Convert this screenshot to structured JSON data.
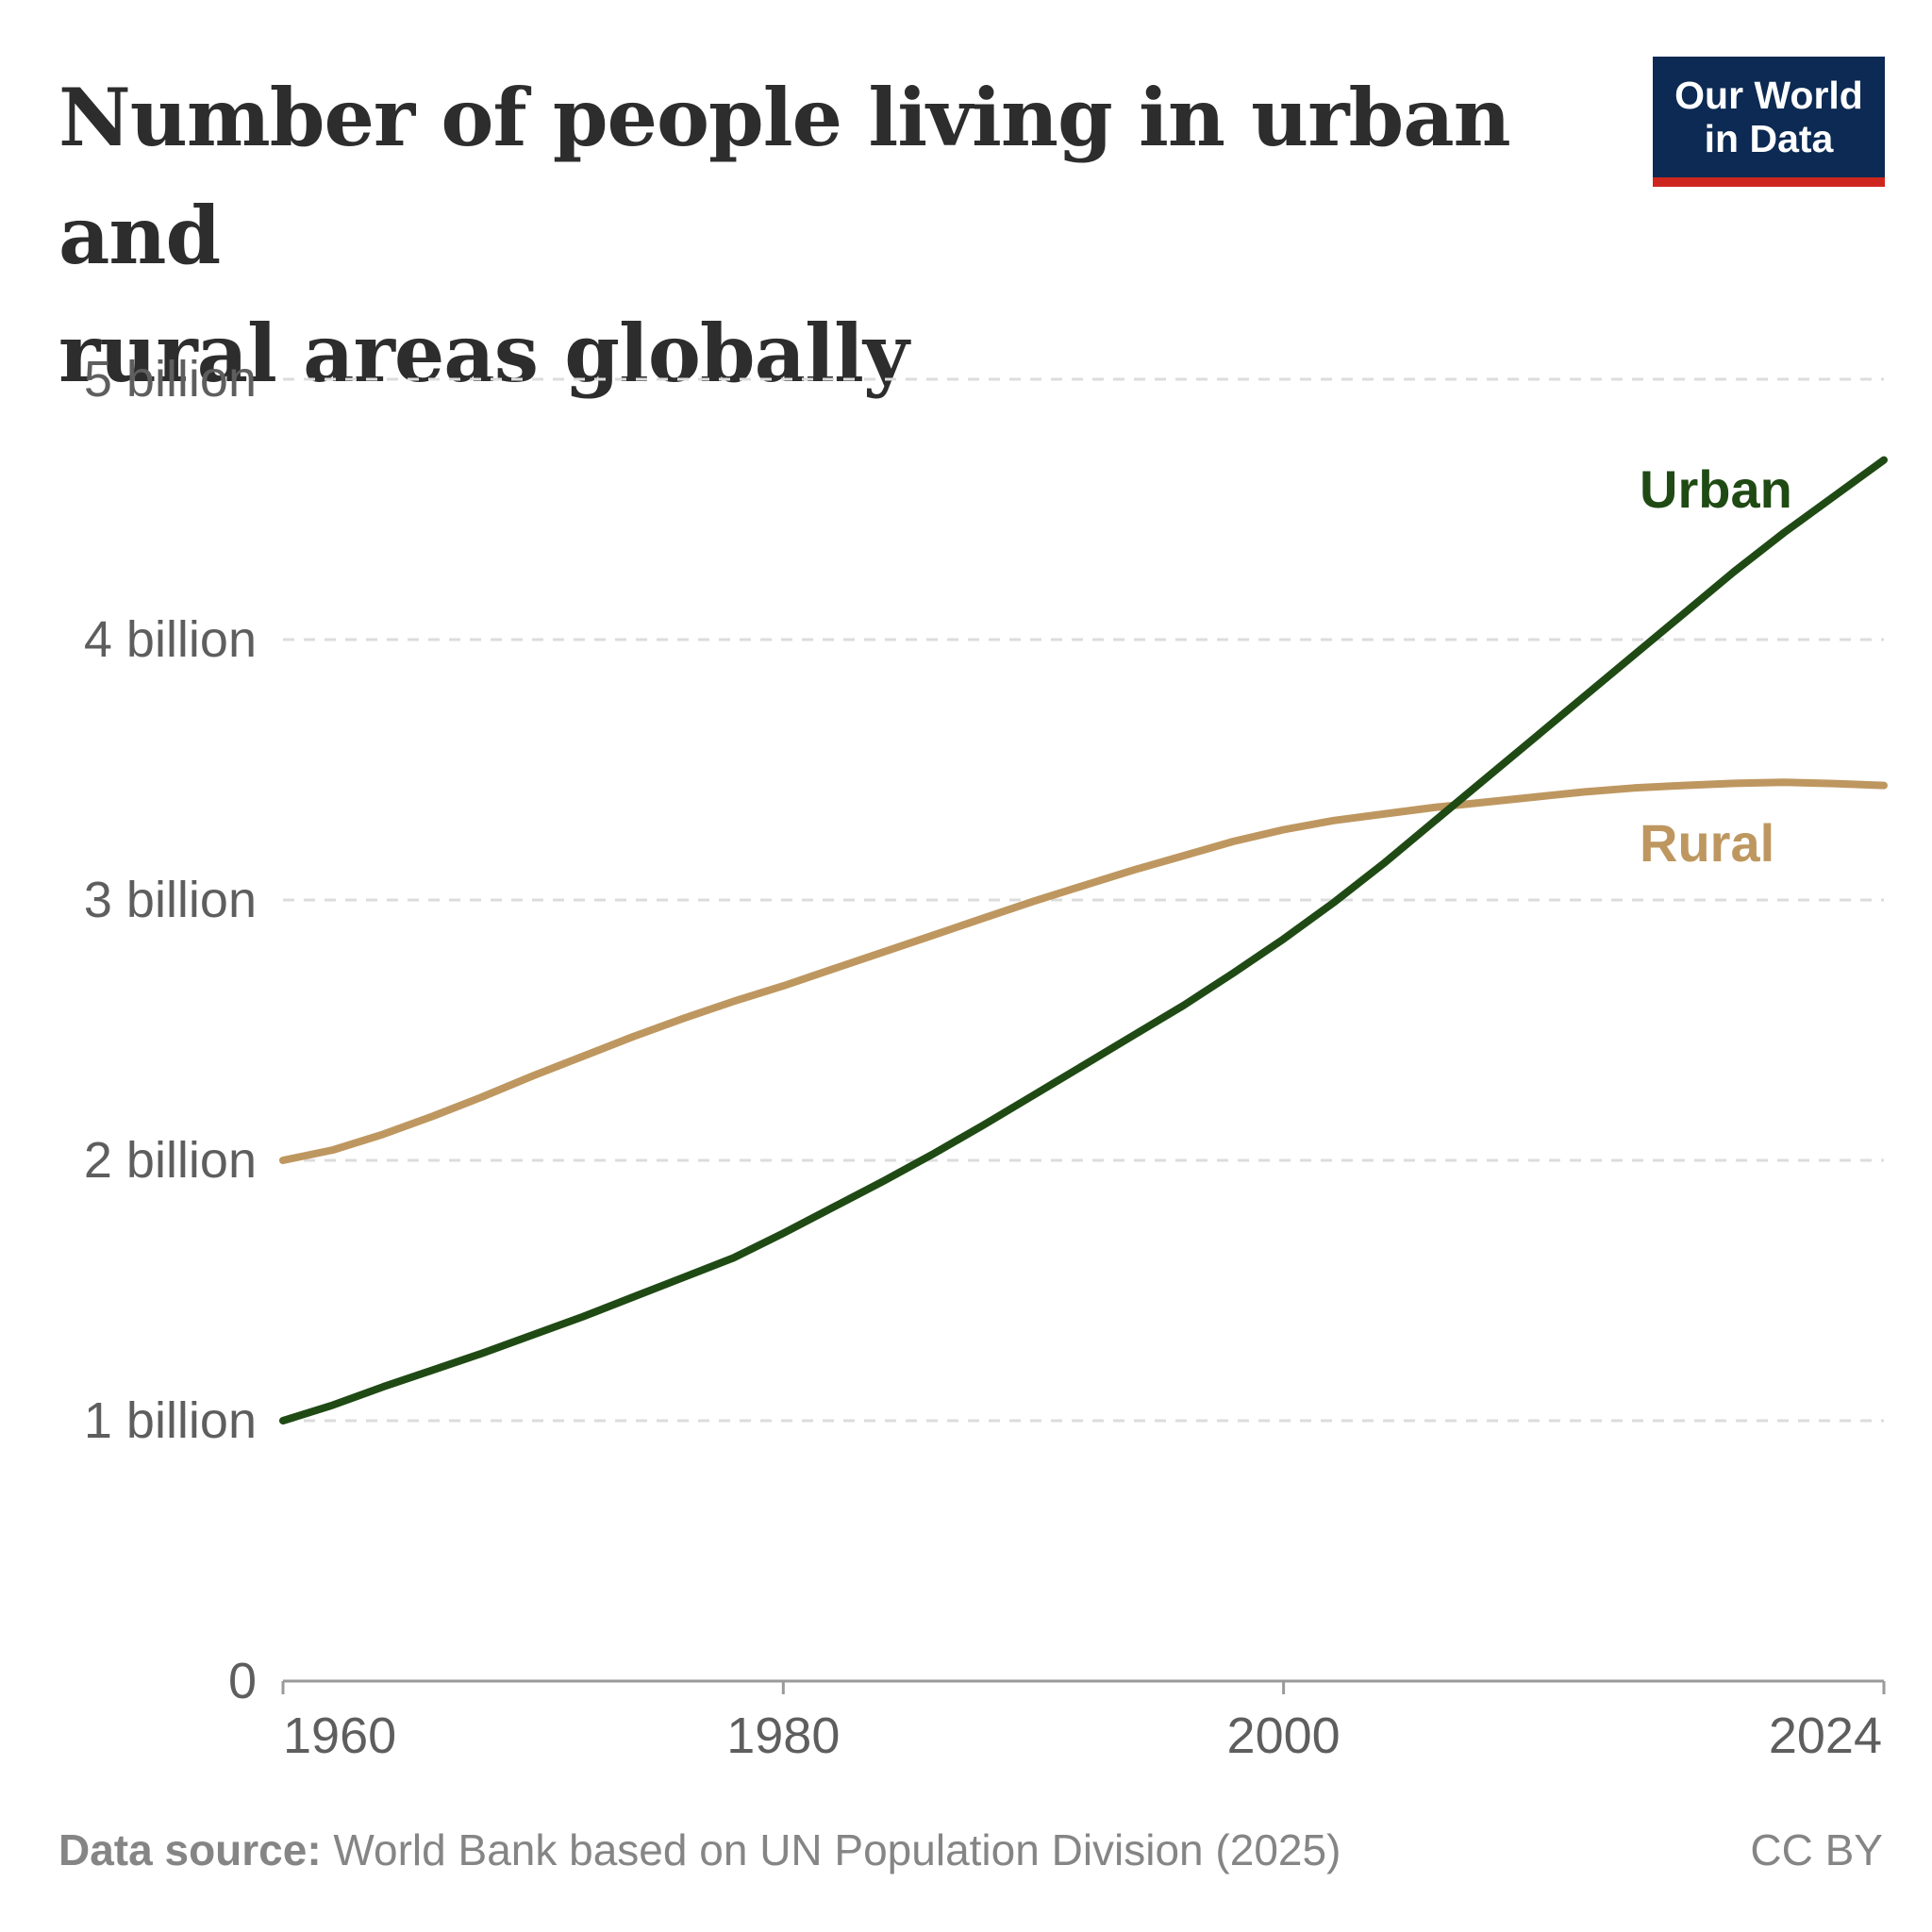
{
  "header": {
    "title_line1": "Number of people living in urban and",
    "title_line2": "rural areas globally",
    "logo_line1": "Our World",
    "logo_line2": "in Data"
  },
  "footer": {
    "source_label": "Data source:",
    "source_text": " World Bank based on UN Population Division (2025)",
    "license": "CC BY"
  },
  "colors": {
    "urban": "#1f4a14",
    "rural": "#be9760",
    "grid": "#dcdcdc",
    "axis": "#9a9a9a",
    "tick_label": "#5e5e5e"
  },
  "chart_data": {
    "type": "line",
    "title": "Number of people living in urban and rural areas globally",
    "xlabel": "",
    "ylabel": "",
    "xlim": [
      1960,
      2024
    ],
    "ylim": [
      0,
      5000000000
    ],
    "x_ticks": [
      1960,
      1980,
      2000,
      2024
    ],
    "x_tick_labels": [
      "1960",
      "1980",
      "2000",
      "2024"
    ],
    "y_ticks": [
      0,
      1000000000,
      2000000000,
      3000000000,
      4000000000,
      5000000000
    ],
    "y_tick_labels": [
      "0",
      "1 billion",
      "2 billion",
      "3 billion",
      "4 billion",
      "5 billion"
    ],
    "grid": true,
    "legend": "inline labels at right end of lines",
    "series": [
      {
        "name": "Urban",
        "label": "Urban",
        "color": "#1f4a14",
        "x": [
          1960,
          1962,
          1964,
          1966,
          1968,
          1970,
          1972,
          1974,
          1976,
          1978,
          1980,
          1982,
          1984,
          1986,
          1988,
          1990,
          1992,
          1994,
          1996,
          1998,
          2000,
          2002,
          2004,
          2006,
          2008,
          2010,
          2012,
          2014,
          2016,
          2018,
          2020,
          2022,
          2024
        ],
        "values": [
          1000000000,
          1060000000,
          1130000000,
          1195000000,
          1260000000,
          1330000000,
          1400000000,
          1475000000,
          1550000000,
          1625000000,
          1720000000,
          1820000000,
          1920000000,
          2025000000,
          2135000000,
          2250000000,
          2365000000,
          2480000000,
          2595000000,
          2720000000,
          2850000000,
          2990000000,
          3140000000,
          3300000000,
          3460000000,
          3620000000,
          3780000000,
          3940000000,
          4100000000,
          4260000000,
          4410000000,
          4550000000,
          4690000000
        ]
      },
      {
        "name": "Rural",
        "label": "Rural",
        "color": "#be9760",
        "x": [
          1960,
          1962,
          1964,
          1966,
          1968,
          1970,
          1972,
          1974,
          1976,
          1978,
          1980,
          1982,
          1984,
          1986,
          1988,
          1990,
          1992,
          1994,
          1996,
          1998,
          2000,
          2002,
          2004,
          2006,
          2008,
          2010,
          2012,
          2014,
          2016,
          2018,
          2020,
          2022,
          2024
        ],
        "values": [
          2000000000,
          2040000000,
          2100000000,
          2170000000,
          2245000000,
          2325000000,
          2400000000,
          2475000000,
          2545000000,
          2610000000,
          2670000000,
          2735000000,
          2800000000,
          2865000000,
          2930000000,
          2995000000,
          3055000000,
          3115000000,
          3170000000,
          3225000000,
          3270000000,
          3305000000,
          3330000000,
          3355000000,
          3375000000,
          3395000000,
          3415000000,
          3430000000,
          3440000000,
          3448000000,
          3452000000,
          3447000000,
          3440000000
        ]
      }
    ]
  }
}
